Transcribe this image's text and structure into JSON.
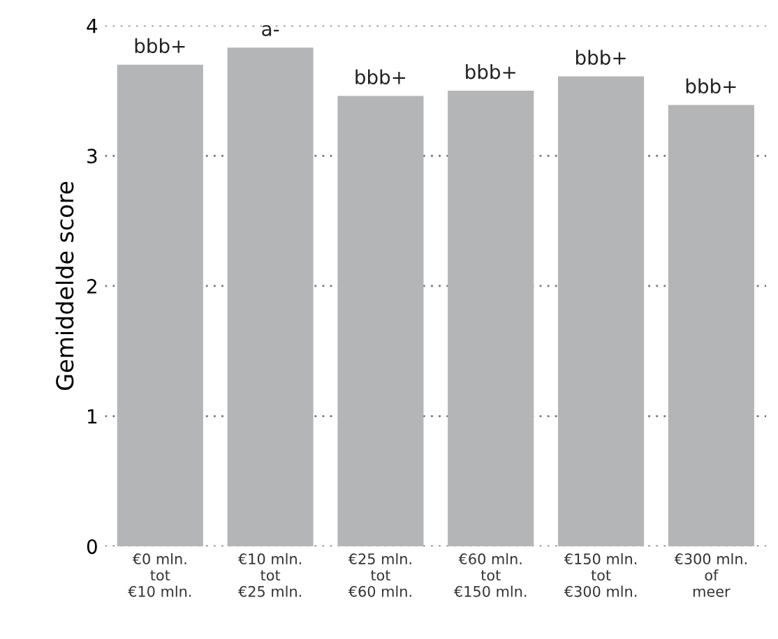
{
  "chart_data": {
    "type": "bar",
    "ylabel": "Gemiddelde score",
    "categories": [
      "€0 mln.\ntot\n€10 mln.",
      "€10 mln.\ntot\n€25 mln.",
      "€25 mln.\ntot\n€60 mln.",
      "€60 mln.\ntot\n€150 mln.",
      "€150 mln.\ntot\n€300 mln.",
      "€300 mln.\nof\nmeer"
    ],
    "values": [
      3.7,
      3.83,
      3.46,
      3.5,
      3.61,
      3.39
    ],
    "value_labels": [
      "bbb+",
      "a-",
      "bbb+",
      "bbb+",
      "bbb+",
      "bbb+"
    ],
    "color": "#b3b5b6",
    "ylim": [
      0,
      4
    ],
    "yticks": [
      0,
      1,
      2,
      3,
      4
    ],
    "grid": "y"
  }
}
